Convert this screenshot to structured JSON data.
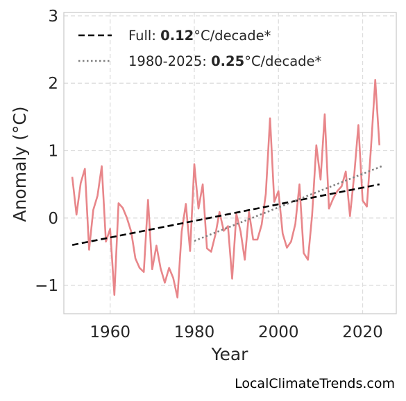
{
  "chart_data": {
    "type": "line",
    "xlabel": "Year",
    "ylabel": "Anomaly (°C)",
    "xlim": [
      1949,
      2028
    ],
    "ylim": [
      -1.42,
      3.05
    ],
    "xticks": [
      1960,
      1980,
      2000,
      2020
    ],
    "xtick_labels": [
      "1960",
      "1980",
      "2000",
      "2020"
    ],
    "yticks": [
      -1,
      0,
      1,
      2,
      3
    ],
    "ytick_labels": [
      "−1",
      "0",
      "1",
      "2",
      "3"
    ],
    "grid": true,
    "legend_position": "top-left",
    "series": [
      {
        "color": "#e8868a",
        "x": [
          1951,
          1952,
          1953,
          1954,
          1955,
          1956,
          1957,
          1958,
          1959,
          1960,
          1961,
          1962,
          1963,
          1964,
          1965,
          1966,
          1967,
          1968,
          1969,
          1970,
          1971,
          1972,
          1973,
          1974,
          1975,
          1976,
          1977,
          1978,
          1979,
          1980,
          1981,
          1982,
          1983,
          1984,
          1985,
          1986,
          1987,
          1988,
          1989,
          1990,
          1991,
          1992,
          1993,
          1994,
          1995,
          1996,
          1997,
          1998,
          1999,
          2000,
          2001,
          2002,
          2003,
          2004,
          2005,
          2006,
          2007,
          2008,
          2009,
          2010,
          2011,
          2012,
          2013,
          2014,
          2015,
          2016,
          2017,
          2018,
          2019,
          2020,
          2021,
          2022,
          2023,
          2024
        ],
        "y": [
          0.61,
          0.05,
          0.52,
          0.73,
          -0.47,
          0.12,
          0.33,
          0.77,
          -0.35,
          -0.16,
          -1.14,
          0.22,
          0.15,
          0.0,
          -0.2,
          -0.6,
          -0.74,
          -0.8,
          0.27,
          -0.76,
          -0.41,
          -0.75,
          -0.96,
          -0.74,
          -0.89,
          -1.18,
          -0.2,
          0.21,
          -0.49,
          0.8,
          0.14,
          0.5,
          -0.45,
          -0.5,
          -0.25,
          0.09,
          -0.19,
          -0.12,
          -0.9,
          0.06,
          -0.2,
          -0.62,
          0.09,
          -0.32,
          -0.32,
          -0.1,
          0.36,
          1.48,
          0.24,
          0.4,
          -0.23,
          -0.44,
          -0.35,
          -0.09,
          0.5,
          -0.52,
          -0.62,
          0.04,
          1.08,
          0.57,
          1.54,
          0.14,
          0.29,
          0.4,
          0.47,
          0.69,
          0.03,
          0.64,
          1.38,
          0.26,
          0.17,
          1.05,
          2.05,
          1.08
        ]
      }
    ],
    "trends": [
      {
        "name_prefix": "Full: ",
        "name_value": "0.12",
        "name_suffix": "°C/decade*",
        "color": "#000000",
        "style": "dashed",
        "x": [
          1951,
          2024
        ],
        "y": [
          -0.4,
          0.5
        ]
      },
      {
        "name_prefix": "1980-2025: ",
        "name_value": "0.25",
        "name_suffix": "°C/decade*",
        "color": "#7f7f7f",
        "style": "dotted",
        "x": [
          1980,
          2025
        ],
        "y": [
          -0.34,
          0.78
        ]
      }
    ]
  },
  "watermark": "LocalClimateTrends.com"
}
